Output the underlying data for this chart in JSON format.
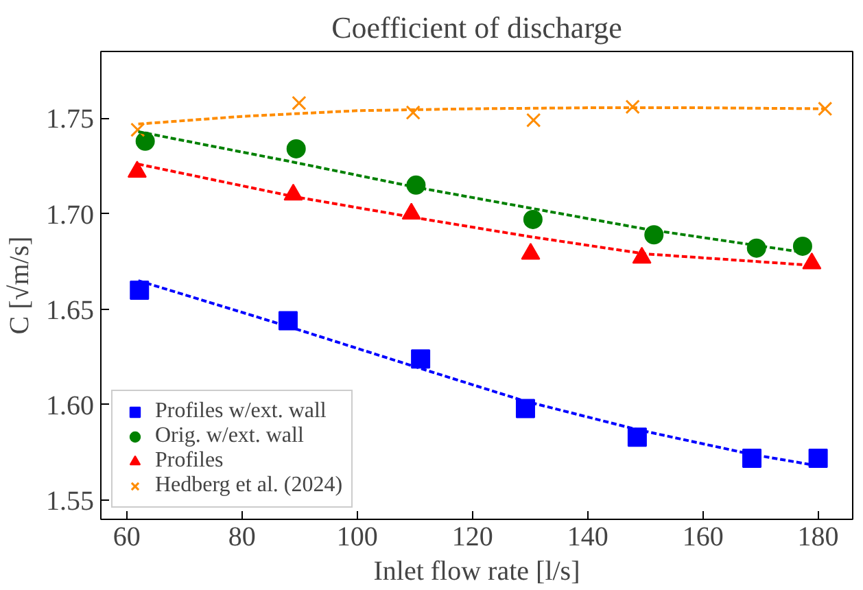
{
  "chart_data": {
    "type": "scatter",
    "title": "Coefficient of discharge",
    "xlabel": "Inlet flow rate [l/s]",
    "ylabel": "C [√m/s]",
    "xlim": [
      55.5,
      186
    ],
    "ylim": [
      1.54,
      1.785
    ],
    "xticks": [
      60,
      80,
      100,
      120,
      140,
      160,
      180
    ],
    "yticks": [
      1.55,
      {
        "value": 1.6,
        "label": "1.60"
      },
      1.65,
      {
        "value": 1.7,
        "label": "1.70"
      },
      1.75
    ],
    "grid": false,
    "legend": "bottom left",
    "series": [
      {
        "name": "Profiles w/ext. wall",
        "color": "#0000ff",
        "marker": "square",
        "x": [
          62.2,
          88,
          111,
          129.2,
          148.6,
          168.5,
          180
        ],
        "values": [
          1.66,
          1.644,
          1.624,
          1.598,
          1.583,
          1.572,
          1.572
        ]
      },
      {
        "name": "Orig. w/ext. wall",
        "color": "#008000",
        "marker": "circle",
        "x": [
          63.2,
          89.4,
          110.2,
          130.5,
          151.5,
          169.3,
          177.3
        ],
        "values": [
          1.738,
          1.734,
          1.715,
          1.697,
          1.689,
          1.682,
          1.683
        ]
      },
      {
        "name": "Profiles",
        "color": "#ff0000",
        "marker": "triangle",
        "x": [
          61.8,
          88.9,
          109.4,
          130.1,
          149.4,
          178.9
        ],
        "values": [
          1.722,
          1.71,
          1.7,
          1.679,
          1.677,
          1.674
        ]
      },
      {
        "name": "Hedberg et al. (2024)",
        "color": "#ff8c00",
        "marker": "cross",
        "x": [
          61.9,
          89.9,
          109.7,
          130.6,
          147.8,
          181.2
        ],
        "values": [
          1.744,
          1.758,
          1.753,
          1.749,
          1.756,
          1.755
        ]
      },
      {
        "type": "line",
        "color": "#0000ff",
        "line_style": "dashed",
        "marker": "none",
        "x": [
          62,
          88,
          111,
          129,
          148.6,
          168.5,
          180
        ],
        "values": [
          1.665,
          1.641,
          1.619,
          1.602,
          1.587,
          1.574,
          1.568
        ]
      },
      {
        "type": "line",
        "color": "#008000",
        "line_style": "dashed",
        "marker": "none",
        "x": [
          62,
          89,
          110,
          130,
          150,
          177
        ],
        "values": [
          1.743,
          1.727,
          1.714,
          1.703,
          1.692,
          1.68
        ]
      },
      {
        "type": "line",
        "color": "#ff0000",
        "line_style": "dashed",
        "marker": "none",
        "x": [
          62,
          89,
          110,
          130,
          150,
          179
        ],
        "values": [
          1.726,
          1.709,
          1.698,
          1.688,
          1.679,
          1.673
        ]
      },
      {
        "type": "line",
        "color": "#ff8c00",
        "line_style": "dashed",
        "marker": "none",
        "x": [
          62,
          80,
          100,
          120,
          140,
          160,
          181
        ],
        "values": [
          1.747,
          1.751,
          1.754,
          1.755,
          1.7555,
          1.7555,
          1.755
        ]
      }
    ]
  }
}
